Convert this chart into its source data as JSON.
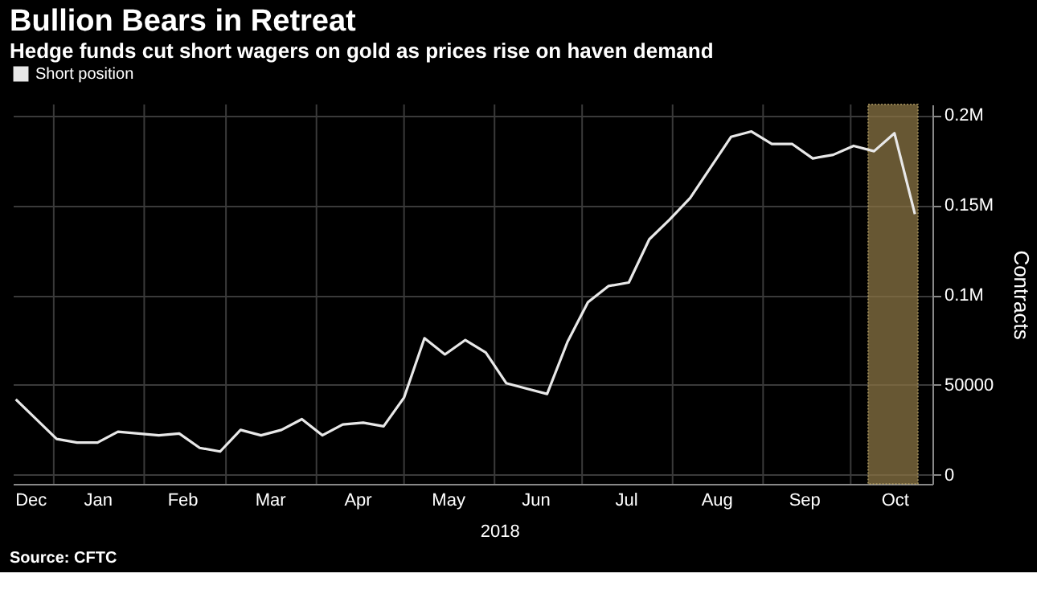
{
  "chart_data": {
    "type": "line",
    "title": "Bullion Bears in Retreat",
    "subtitle": "Hedge funds cut short wagers on gold as prices rise on haven demand",
    "ylabel": "Contracts",
    "x": [
      "2017-12-19",
      "2018-01-02",
      "2018-01-09",
      "2018-01-16",
      "2018-01-23",
      "2018-01-30",
      "2018-02-06",
      "2018-02-13",
      "2018-02-20",
      "2018-02-27",
      "2018-03-06",
      "2018-03-13",
      "2018-03-20",
      "2018-03-27",
      "2018-04-03",
      "2018-04-10",
      "2018-04-17",
      "2018-04-24",
      "2018-05-01",
      "2018-05-08",
      "2018-05-15",
      "2018-05-22",
      "2018-05-29",
      "2018-06-05",
      "2018-06-12",
      "2018-06-19",
      "2018-06-26",
      "2018-07-03",
      "2018-07-10",
      "2018-07-17",
      "2018-07-24",
      "2018-07-31",
      "2018-08-07",
      "2018-08-14",
      "2018-08-21",
      "2018-08-28",
      "2018-09-04",
      "2018-09-11",
      "2018-09-18",
      "2018-09-25",
      "2018-10-02",
      "2018-10-09",
      "2018-10-16",
      "2018-10-23"
    ],
    "series": [
      {
        "name": "Short position",
        "color": "#e8e8e8",
        "values": [
          42000,
          20000,
          18000,
          18000,
          24000,
          23000,
          22000,
          23000,
          15000,
          13000,
          25000,
          22000,
          25000,
          31000,
          22000,
          28000,
          29000,
          27000,
          43000,
          76000,
          67000,
          75000,
          68000,
          51000,
          48000,
          45000,
          74000,
          96000,
          105000,
          107000,
          131000,
          142000,
          154000,
          171000,
          188000,
          191000,
          184000,
          184000,
          176000,
          178000,
          183000,
          180000,
          190000,
          145000
        ]
      }
    ],
    "xlim": [
      "2017-12-18",
      "2018-10-29"
    ],
    "xticks": [
      {
        "value": "2017-12-24",
        "label": "Dec"
      },
      {
        "value": "2018-01-01",
        "label": null
      },
      {
        "value": "2018-01-16",
        "label": "Jan"
      },
      {
        "value": "2018-02-01",
        "label": null
      },
      {
        "value": "2018-02-14",
        "label": "Feb"
      },
      {
        "value": "2018-03-01",
        "label": null
      },
      {
        "value": "2018-03-16",
        "label": "Mar"
      },
      {
        "value": "2018-04-01",
        "label": null
      },
      {
        "value": "2018-04-15",
        "label": "Apr"
      },
      {
        "value": "2018-05-01",
        "label": null
      },
      {
        "value": "2018-05-16",
        "label": "May"
      },
      {
        "value": "2018-06-01",
        "label": null
      },
      {
        "value": "2018-06-15",
        "label": "Jun"
      },
      {
        "value": "2018-07-01",
        "label": null
      },
      {
        "value": "2018-07-16",
        "label": "Jul"
      },
      {
        "value": "2018-08-01",
        "label": null
      },
      {
        "value": "2018-08-16",
        "label": "Aug"
      },
      {
        "value": "2018-09-01",
        "label": null
      },
      {
        "value": "2018-09-15",
        "label": "Sep"
      },
      {
        "value": "2018-10-01",
        "label": null
      },
      {
        "value": "2018-10-16",
        "label": "Oct"
      }
    ],
    "ylim": [
      -5000,
      206000
    ],
    "yticks": [
      0,
      50000,
      {
        "value": 100000,
        "label": "0.1M"
      },
      {
        "value": 150000,
        "label": "0.15M"
      },
      {
        "value": 200000,
        "label": "0.2M"
      }
    ],
    "bands": [
      {
        "axis": "x",
        "from": "2018-10-07",
        "to": "2018-10-24",
        "color": "#8a7444"
      }
    ],
    "annotations": [
      "2018",
      "Source: CFTC"
    ],
    "grid": true,
    "legend": "top left",
    "marker": "none",
    "line_style": "solid"
  }
}
